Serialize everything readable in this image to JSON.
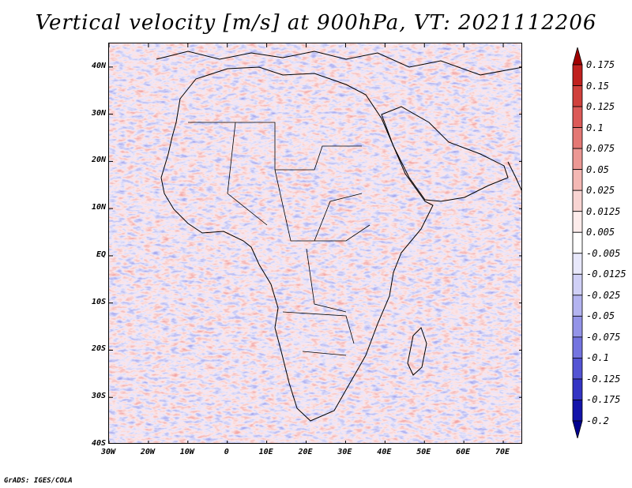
{
  "title": "Vertical velocity [m/s] at 900hPa, VT: 2021112206",
  "footer": "GrADS: IGES/COLA",
  "map": {
    "region": "Africa",
    "lat_labels": [
      "40N",
      "30N",
      "20N",
      "10N",
      "EQ",
      "10S",
      "20S",
      "30S",
      "40S"
    ],
    "lat_values": [
      40,
      30,
      20,
      10,
      0,
      -10,
      -20,
      -30,
      -40
    ],
    "lon_labels": [
      "30W",
      "20W",
      "10W",
      "0",
      "10E",
      "20E",
      "30E",
      "40E",
      "50E",
      "60E",
      "70E"
    ],
    "lon_values": [
      -30,
      -20,
      -10,
      0,
      10,
      20,
      30,
      40,
      50,
      60,
      70
    ],
    "lat_range": [
      -40,
      45
    ],
    "lon_range": [
      -30,
      75
    ]
  },
  "colorbar": {
    "levels": [
      "0.175",
      "0.15",
      "0.125",
      "0.1",
      "0.075",
      "0.05",
      "0.025",
      "0.0125",
      "0.005",
      "-0.005",
      "-0.0125",
      "-0.025",
      "-0.05",
      "-0.075",
      "-0.1",
      "-0.125",
      "-0.175",
      "-0.2"
    ],
    "colors": [
      "#a00000",
      "#c0201e",
      "#d0403c",
      "#dc5a58",
      "#e47874",
      "#ec9894",
      "#f4b8b4",
      "#f8d4d2",
      "#fdeceb",
      "#ffffff",
      "#e8e8fb",
      "#d0d0f6",
      "#b4b4f0",
      "#9494e8",
      "#7474e0",
      "#5454d4",
      "#3434c4",
      "#1414aa",
      "#000090"
    ]
  }
}
